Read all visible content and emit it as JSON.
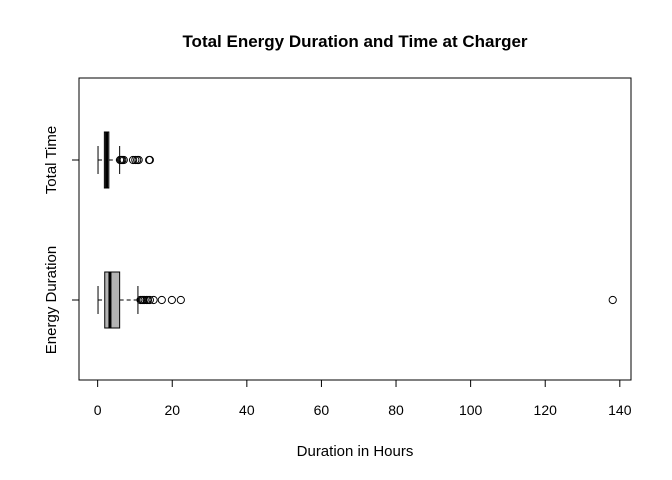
{
  "chart_data": {
    "type": "boxplot",
    "orientation": "horizontal",
    "title": "Total Energy Duration and Time at Charger",
    "xlabel": "Duration in Hours",
    "ylabel": "",
    "xlim": [
      -5,
      143
    ],
    "x_ticks": [
      0,
      20,
      40,
      60,
      80,
      100,
      120,
      140
    ],
    "grid": false,
    "legend": "none",
    "box_fill": "#b3b3b3",
    "categories": [
      "Total Time",
      "Energy Duration"
    ],
    "series": [
      {
        "name": "Total Time",
        "min": 0.1,
        "q1": 1.8,
        "median": 2.4,
        "q3": 3.0,
        "max": 5.9,
        "outliers": [
          6.0,
          6.3,
          6.6,
          7.0,
          9.5,
          10.1,
          10.6,
          11.0,
          13.8,
          14.0
        ]
      },
      {
        "name": "Energy Duration",
        "min": 0.1,
        "q1": 1.9,
        "median": 3.3,
        "q3": 5.9,
        "max": 10.8,
        "outliers": [
          11.5,
          11.9,
          12.2,
          12.6,
          13.1,
          13.5,
          14.0,
          15.0,
          17.2,
          19.9,
          22.3,
          138.1
        ]
      }
    ]
  }
}
